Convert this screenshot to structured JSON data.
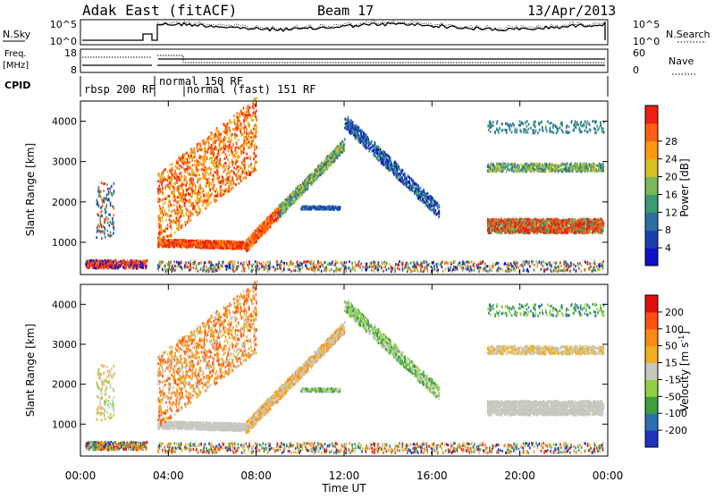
{
  "header": {
    "station": "Adak East (fitACF)",
    "beam": "Beam 17",
    "date": "13/Apr/2013"
  },
  "top_panels": {
    "nsky": {
      "label": "N.Sky",
      "ticks_left": [
        "10^5",
        "10^0"
      ],
      "ticks_right": [
        "10^5",
        "10^0"
      ],
      "right_label": "N.Search"
    },
    "freq": {
      "label_line1": "Freq.",
      "label_line2": "[MHz]",
      "ticks_left": [
        "18",
        "8"
      ],
      "ticks_right": [
        "60",
        "0"
      ],
      "right_label": "Nave"
    },
    "cpid": {
      "label": "CPID",
      "segments": [
        {
          "text": "rbsp 200 RF"
        },
        {
          "text": "normal 150 RF"
        },
        {
          "text": "normal (fast) 151 RF"
        }
      ]
    }
  },
  "chart_data": [
    {
      "type": "heatmap",
      "name": "power",
      "ylabel": "Slant Range [km]",
      "xlabel": "Time UT",
      "xlim": [
        0,
        24
      ],
      "ylim": [
        200,
        4500
      ],
      "yticks": [
        1000,
        2000,
        3000,
        4000
      ],
      "colorbar": {
        "label": "Power [dB]",
        "ticks": [
          4,
          8,
          12,
          16,
          20,
          24,
          28
        ],
        "colors": [
          "#1010c8",
          "#1a40b0",
          "#2c6fa0",
          "#3a9a70",
          "#7ab85a",
          "#d8c020",
          "#ff9a10",
          "#ff6010",
          "#ee2010"
        ]
      }
    },
    {
      "type": "heatmap",
      "name": "velocity",
      "ylabel": "Slant Range [km]",
      "xlabel": "Time UT",
      "xlim": [
        0,
        24
      ],
      "ylim": [
        200,
        4500
      ],
      "yticks": [
        1000,
        2000,
        3000,
        4000
      ],
      "colorbar": {
        "label": "Velocity [m s",
        "label_sup": "-1",
        "label_end": "]",
        "ticks": [
          200,
          100,
          50,
          15,
          -15,
          -50,
          -100,
          -200
        ],
        "colors": [
          "#2030c0",
          "#2a70b0",
          "#3aa040",
          "#90d040",
          "#c8c8c0",
          "#f0b020",
          "#ff8a10",
          "#ff5010",
          "#e01010"
        ]
      }
    }
  ],
  "x_axis": {
    "ticks": [
      "00:00",
      "04:00",
      "08:00",
      "12:00",
      "16:00",
      "20:00",
      "00:00"
    ],
    "label": "Time UT"
  }
}
